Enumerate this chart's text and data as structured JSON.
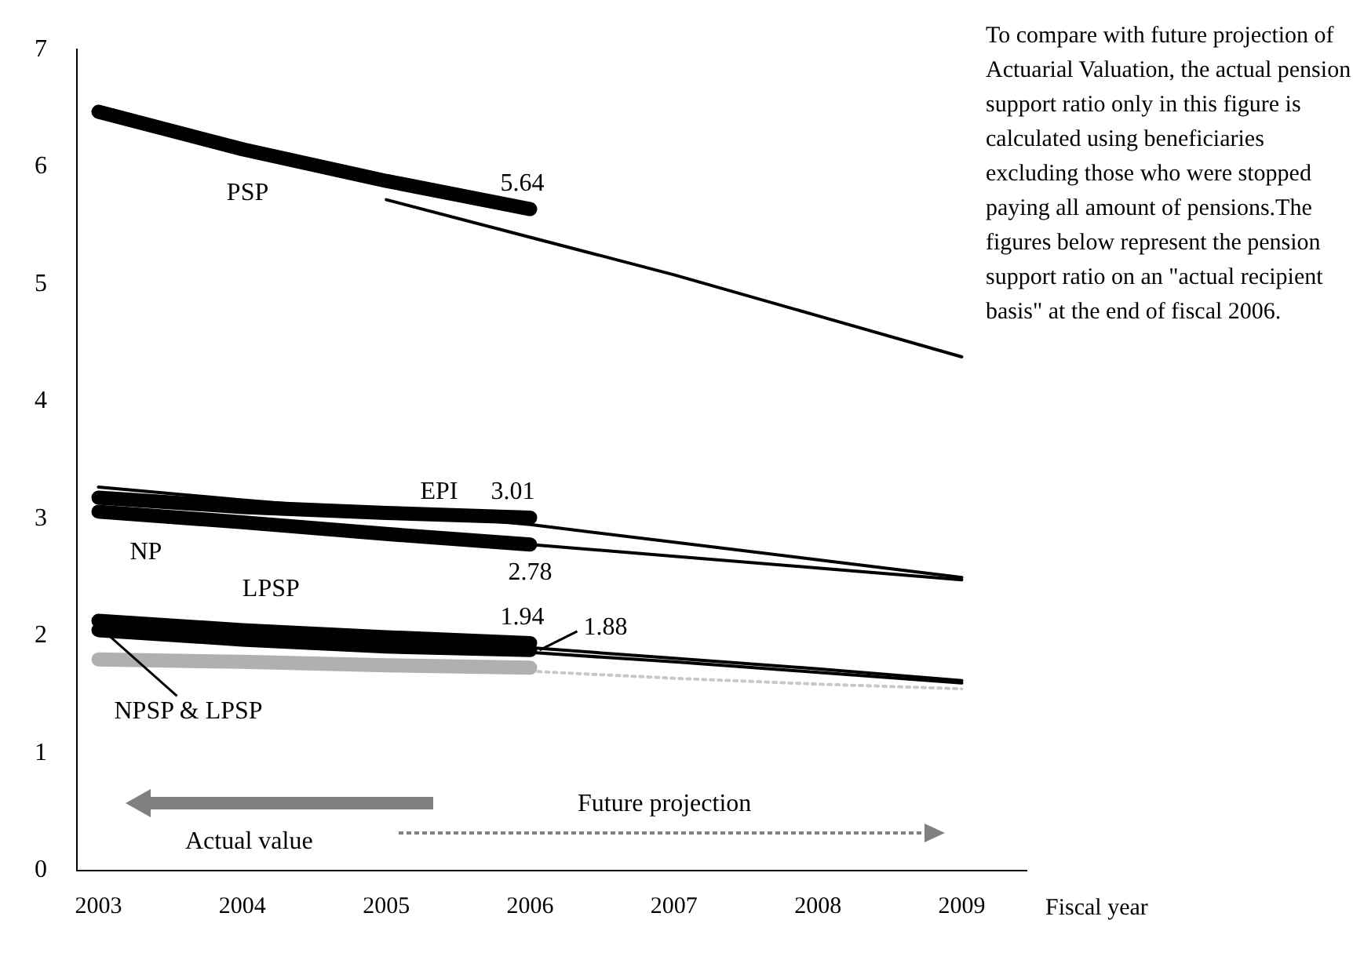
{
  "chart_data": {
    "type": "line",
    "xlabel": "Fiscal year",
    "xlim": [
      2002.85,
      2009.45
    ],
    "xticks": [
      2003,
      2004,
      2005,
      2006,
      2007,
      2008,
      2009
    ],
    "ylim": [
      0,
      7
    ],
    "yticks": [
      0,
      1,
      2,
      3,
      4,
      5,
      6,
      7
    ],
    "grid": false,
    "legend": false,
    "marker": "none",
    "series": [
      {
        "name": "PSP",
        "color": "#000000",
        "x": [
          2003,
          2004,
          2005,
          2006
        ],
        "values": [
          6.47,
          6.15,
          5.88,
          5.64
        ],
        "value_labels": [
          null,
          null,
          null,
          "5.64"
        ]
      },
      {
        "name": "EPI",
        "color": "#000000",
        "x": [
          2003,
          2004,
          2005,
          2006
        ],
        "values": [
          3.18,
          3.1,
          3.05,
          3.01
        ],
        "value_labels": [
          null,
          null,
          null,
          "3.01"
        ]
      },
      {
        "name": "NP",
        "color": "#000000",
        "x": [
          2003,
          2004,
          2005,
          2006
        ],
        "values": [
          3.06,
          2.97,
          2.87,
          2.78
        ],
        "value_labels": [
          null,
          null,
          null,
          "2.78"
        ]
      },
      {
        "name": "LPSP",
        "color": "#000000",
        "x": [
          2003,
          2004,
          2005,
          2006
        ],
        "values": [
          2.13,
          2.05,
          1.99,
          1.94
        ],
        "value_labels": [
          null,
          null,
          null,
          "1.94"
        ]
      },
      {
        "name": "NPSP & LPSP",
        "color": "#000000",
        "x": [
          2003,
          2004,
          2005,
          2006
        ],
        "values": [
          2.05,
          1.97,
          1.91,
          1.88
        ],
        "value_labels": [
          null,
          null,
          null,
          "1.88"
        ]
      },
      {
        "color": "#b0b0b0",
        "x": [
          2003,
          2004,
          2005,
          2006
        ],
        "values": [
          1.8,
          1.78,
          1.75,
          1.73
        ]
      },
      {
        "color": "#000000",
        "x": [
          2005,
          2006,
          2007,
          2008,
          2009
        ],
        "values": [
          5.72,
          5.4,
          5.08,
          4.73,
          4.38
        ]
      },
      {
        "color": "#000000",
        "x": [
          2003,
          2004,
          2005,
          2006,
          2007,
          2008,
          2009
        ],
        "values": [
          3.27,
          3.16,
          3.06,
          2.95,
          2.8,
          2.65,
          2.5
        ]
      },
      {
        "color": "#000000",
        "x": [
          2006,
          2007,
          2008,
          2009
        ],
        "values": [
          2.78,
          2.68,
          2.58,
          2.48
        ]
      },
      {
        "color": "#000000",
        "x": [
          2006,
          2007,
          2008,
          2009
        ],
        "values": [
          1.9,
          1.81,
          1.72,
          1.62
        ]
      },
      {
        "color": "#000000",
        "x": [
          2006,
          2007,
          2008,
          2009
        ],
        "values": [
          1.86,
          1.78,
          1.69,
          1.6
        ]
      },
      {
        "color": "#c8c8c8",
        "x": [
          2006,
          2007,
          2008,
          2009
        ],
        "values": [
          1.7,
          1.64,
          1.59,
          1.55
        ],
        "line_style": "dotted"
      }
    ],
    "annotations": [
      "To compare with future projection of Actuarial Valuation, the actual pension support ratio only in this figure is calculated using beneficiaries excluding those who were stopped paying all amount of pensions.The figures below represent the pension support ratio on an \"actual recipient basis\" at the end of fiscal 2006.",
      "Actual value",
      "Future projection"
    ]
  }
}
